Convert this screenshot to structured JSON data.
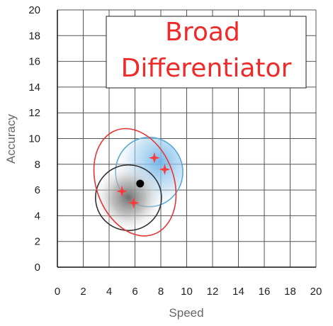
{
  "chart_data": {
    "type": "scatter",
    "title_lines": [
      "Broad",
      "Differentiator"
    ],
    "xlabel": "Speed",
    "ylabel": "Accuracy",
    "xlim": [
      0,
      20
    ],
    "ylim": [
      0,
      20
    ],
    "x_ticks": [
      0,
      2,
      4,
      6,
      8,
      10,
      12,
      14,
      16,
      18,
      20
    ],
    "y_ticks": [
      0,
      2,
      4,
      6,
      8,
      10,
      12,
      14,
      16,
      18,
      20
    ],
    "grid": true,
    "regions": [
      {
        "id": "outer",
        "shape": "ellipse",
        "cx": 6.0,
        "cy": 6.6,
        "rx": 3.0,
        "ry": 4.3,
        "rotation_deg": -20,
        "stroke": "#e53535",
        "fill": "none"
      },
      {
        "id": "blue",
        "shape": "ellipse",
        "cx": 7.1,
        "cy": 7.4,
        "rx": 2.6,
        "ry": 2.7,
        "rotation_deg": 0,
        "stroke": "#5aa9d6",
        "fill": "radial-blue"
      },
      {
        "id": "gray",
        "shape": "circle",
        "cx": 5.5,
        "cy": 5.4,
        "rx": 2.55,
        "ry": 2.55,
        "rotation_deg": 0,
        "stroke": "#333333",
        "fill": "radial-gray"
      }
    ],
    "points": [
      {
        "series": "red-star",
        "x": 7.5,
        "y": 8.5
      },
      {
        "series": "red-star",
        "x": 8.3,
        "y": 7.6
      },
      {
        "series": "red-star",
        "x": 5.0,
        "y": 5.9
      },
      {
        "series": "red-star",
        "x": 5.9,
        "y": 5.0
      },
      {
        "series": "black-dot",
        "x": 6.4,
        "y": 6.5
      }
    ],
    "colors": {
      "grid": "#555555",
      "title_box_border": "#222222",
      "title_text": "#ee2a2a",
      "star": "#ff3b3b",
      "dot": "#000000",
      "blue_center": "#6db4e8",
      "gray_center": "#7a7a7a"
    }
  }
}
